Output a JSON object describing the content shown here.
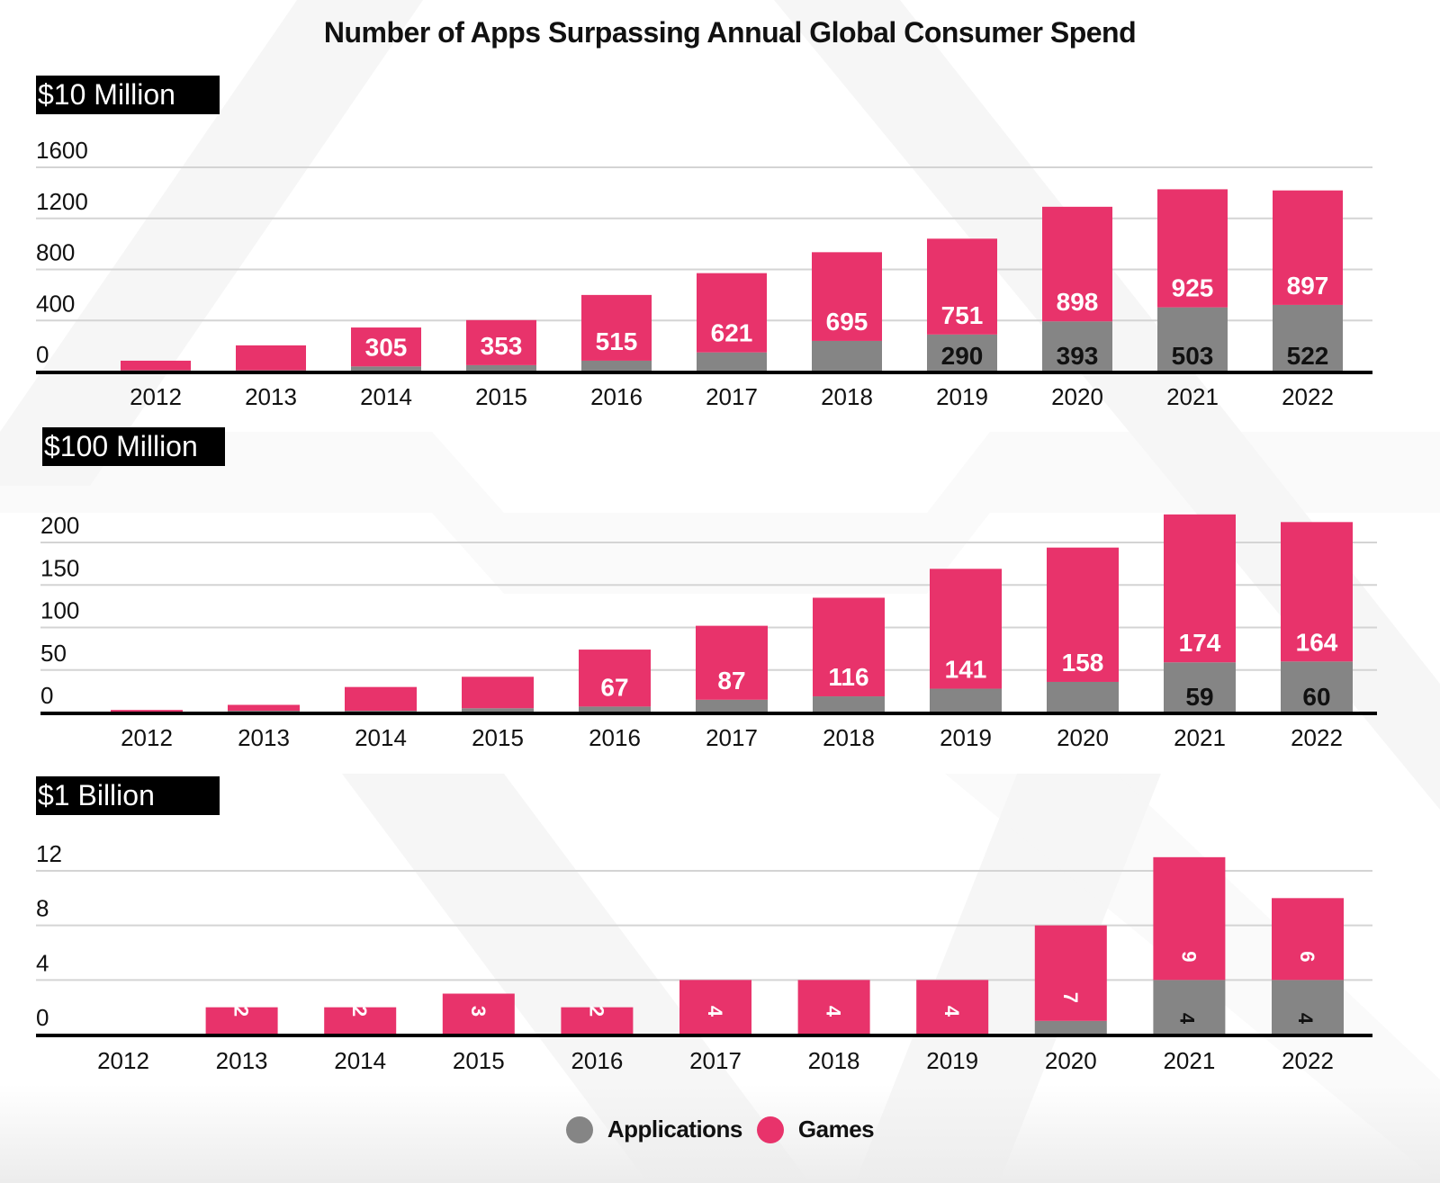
{
  "title": "Number of Apps Surpassing Annual Global Consumer Spend",
  "colors": {
    "applications": "#858585",
    "games": "#e8336b",
    "gridline": "#d4d4d4",
    "axis": "#000000",
    "label_on_games": "#ffffff",
    "label_on_apps": "#111111"
  },
  "legend": [
    {
      "name": "Applications",
      "color_key": "applications"
    },
    {
      "name": "Games",
      "color_key": "games"
    }
  ],
  "chart_data": [
    {
      "type": "bar",
      "stacked": true,
      "title": "$10 Million",
      "categories": [
        "2012",
        "2013",
        "2014",
        "2015",
        "2016",
        "2017",
        "2018",
        "2019",
        "2020",
        "2021",
        "2022"
      ],
      "yticks": [
        0,
        400,
        800,
        1200,
        1600
      ],
      "ylim": [
        0,
        1600
      ],
      "grid": true,
      "series": [
        {
          "name": "Applications",
          "values": [
            10,
            10,
            40,
            50,
            85,
            150,
            240,
            290,
            393,
            503,
            522
          ],
          "labels": [
            null,
            null,
            null,
            null,
            null,
            null,
            null,
            "290",
            "393",
            "503",
            "522"
          ]
        },
        {
          "name": "Games",
          "values": [
            75,
            195,
            305,
            353,
            515,
            621,
            695,
            751,
            898,
            925,
            897
          ],
          "labels": [
            null,
            null,
            "305",
            "353",
            "515",
            "621",
            "695",
            "751",
            "898",
            "925",
            "897"
          ]
        }
      ],
      "xlabel": "",
      "ylabel": ""
    },
    {
      "type": "bar",
      "stacked": true,
      "title": "$100 Million",
      "categories": [
        "2012",
        "2013",
        "2014",
        "2015",
        "2016",
        "2017",
        "2018",
        "2019",
        "2020",
        "2021",
        "2022"
      ],
      "yticks": [
        0,
        50,
        100,
        150,
        200
      ],
      "ylim": [
        0,
        200
      ],
      "grid": true,
      "series": [
        {
          "name": "Applications",
          "values": [
            0,
            2,
            2,
            5,
            7,
            15,
            19,
            28,
            36,
            59,
            60
          ],
          "labels": [
            null,
            null,
            null,
            null,
            null,
            null,
            null,
            null,
            null,
            "59",
            "60"
          ]
        },
        {
          "name": "Games",
          "values": [
            3,
            7,
            28,
            37,
            67,
            87,
            116,
            141,
            158,
            174,
            164
          ],
          "labels": [
            null,
            null,
            null,
            null,
            "67",
            "87",
            "116",
            "141",
            "158",
            "174",
            "164"
          ]
        }
      ],
      "xlabel": "",
      "ylabel": ""
    },
    {
      "type": "bar",
      "stacked": true,
      "title": "$1 Billion",
      "categories": [
        "2012",
        "2013",
        "2014",
        "2015",
        "2016",
        "2017",
        "2018",
        "2019",
        "2020",
        "2021",
        "2022"
      ],
      "yticks": [
        0,
        4,
        8,
        12
      ],
      "ylim": [
        0,
        12
      ],
      "grid": true,
      "rotated_labels": true,
      "series": [
        {
          "name": "Applications",
          "values": [
            0,
            0,
            0,
            0,
            0,
            0,
            0,
            0,
            1,
            4,
            4
          ],
          "labels": [
            null,
            null,
            null,
            null,
            null,
            null,
            null,
            null,
            null,
            "4",
            "4"
          ]
        },
        {
          "name": "Games",
          "values": [
            0,
            2,
            2,
            3,
            2,
            4,
            4,
            4,
            7,
            9,
            6
          ],
          "labels": [
            null,
            "2",
            "2",
            "3",
            "2",
            "4",
            "4",
            "4",
            "7",
            "9",
            "6"
          ]
        }
      ],
      "xlabel": "",
      "ylabel": ""
    }
  ]
}
